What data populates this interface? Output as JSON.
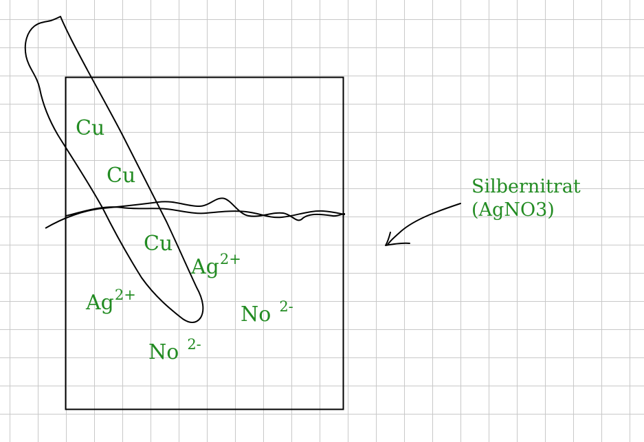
{
  "colors": {
    "ink": "#000000",
    "label": "#228b22",
    "grid": "#c8c8c8",
    "background": "#ffffff"
  },
  "labels": {
    "cu_1": "Cu",
    "cu_2": "Cu",
    "cu_3": "Cu",
    "ag_ion_1": {
      "base": "Ag",
      "charge": "2+"
    },
    "ag_ion_2": {
      "base": "Ag",
      "charge": "2+"
    },
    "no_ion_1": {
      "base": "No",
      "charge": "2-"
    },
    "no_ion_2": {
      "base": "No",
      "charge": "2-"
    }
  },
  "annotation": {
    "line1": "Silbernitrat",
    "line2": "(AgNO3)"
  }
}
